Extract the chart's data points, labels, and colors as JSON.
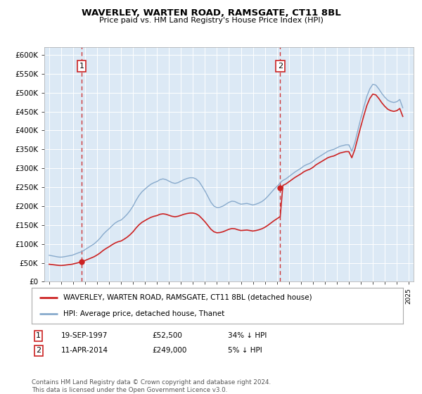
{
  "title": "WAVERLEY, WARTEN ROAD, RAMSGATE, CT11 8BL",
  "subtitle": "Price paid vs. HM Land Registry's House Price Index (HPI)",
  "ylim": [
    0,
    620000
  ],
  "yticks": [
    0,
    50000,
    100000,
    150000,
    200000,
    250000,
    300000,
    350000,
    400000,
    450000,
    500000,
    550000,
    600000
  ],
  "ytick_labels": [
    "£0",
    "£50K",
    "£100K",
    "£150K",
    "£200K",
    "£250K",
    "£300K",
    "£350K",
    "£400K",
    "£450K",
    "£500K",
    "£550K",
    "£600K"
  ],
  "plot_bg_color": "#dce9f5",
  "red_color": "#cc2222",
  "blue_color": "#88aacc",
  "transaction1_date": 1997.72,
  "transaction1_price": 52500,
  "transaction2_date": 2014.28,
  "transaction2_price": 249000,
  "legend_label_red": "WAVERLEY, WARTEN ROAD, RAMSGATE, CT11 8BL (detached house)",
  "legend_label_blue": "HPI: Average price, detached house, Thanet",
  "footer": "Contains HM Land Registry data © Crown copyright and database right 2024.\nThis data is licensed under the Open Government Licence v3.0.",
  "hpi_dates": [
    1995.0,
    1995.083,
    1995.167,
    1995.25,
    1995.333,
    1995.417,
    1995.5,
    1995.583,
    1995.667,
    1995.75,
    1995.833,
    1995.917,
    1996.0,
    1996.083,
    1996.167,
    1996.25,
    1996.333,
    1996.417,
    1996.5,
    1996.583,
    1996.667,
    1996.75,
    1996.833,
    1996.917,
    1997.0,
    1997.083,
    1997.167,
    1997.25,
    1997.333,
    1997.417,
    1997.5,
    1997.583,
    1997.667,
    1997.72,
    1997.75,
    1997.833,
    1997.917,
    1998.0,
    1998.25,
    1998.5,
    1998.75,
    1999.0,
    1999.25,
    1999.5,
    1999.75,
    2000.0,
    2000.25,
    2000.5,
    2000.75,
    2001.0,
    2001.25,
    2001.5,
    2001.75,
    2002.0,
    2002.25,
    2002.5,
    2002.75,
    2003.0,
    2003.25,
    2003.5,
    2003.75,
    2004.0,
    2004.25,
    2004.5,
    2004.75,
    2005.0,
    2005.25,
    2005.5,
    2005.75,
    2006.0,
    2006.25,
    2006.5,
    2006.75,
    2007.0,
    2007.25,
    2007.5,
    2007.75,
    2008.0,
    2008.25,
    2008.5,
    2008.75,
    2009.0,
    2009.25,
    2009.5,
    2009.75,
    2010.0,
    2010.25,
    2010.5,
    2010.75,
    2011.0,
    2011.25,
    2011.5,
    2011.75,
    2012.0,
    2012.25,
    2012.5,
    2012.75,
    2013.0,
    2013.25,
    2013.5,
    2013.75,
    2014.0,
    2014.25,
    2014.28,
    2014.5,
    2014.75,
    2015.0,
    2015.25,
    2015.5,
    2015.75,
    2016.0,
    2016.25,
    2016.5,
    2016.75,
    2017.0,
    2017.25,
    2017.5,
    2017.75,
    2018.0,
    2018.25,
    2018.5,
    2018.75,
    2019.0,
    2019.25,
    2019.5,
    2019.75,
    2020.0,
    2020.25,
    2020.5,
    2020.75,
    2021.0,
    2021.25,
    2021.5,
    2021.75,
    2022.0,
    2022.25,
    2022.5,
    2022.75,
    2023.0,
    2023.25,
    2023.5,
    2023.75,
    2024.0,
    2024.25,
    2024.5
  ],
  "hpi_values": [
    70000,
    69500,
    69000,
    68500,
    68000,
    67500,
    67000,
    66500,
    66000,
    65500,
    65200,
    65000,
    65000,
    65200,
    65500,
    66000,
    66500,
    67000,
    67500,
    68000,
    68500,
    69000,
    69500,
    70000,
    71000,
    72000,
    73000,
    74000,
    75000,
    76000,
    77000,
    78000,
    79000,
    79500,
    80000,
    81500,
    83000,
    85000,
    90000,
    95000,
    100000,
    107000,
    115000,
    125000,
    133000,
    140000,
    148000,
    155000,
    160000,
    163000,
    170000,
    178000,
    188000,
    200000,
    215000,
    228000,
    238000,
    245000,
    252000,
    258000,
    262000,
    265000,
    270000,
    272000,
    270000,
    266000,
    262000,
    260000,
    262000,
    266000,
    270000,
    273000,
    275000,
    275000,
    272000,
    265000,
    253000,
    240000,
    225000,
    210000,
    200000,
    196000,
    197000,
    200000,
    205000,
    210000,
    213000,
    212000,
    208000,
    205000,
    206000,
    207000,
    205000,
    203000,
    205000,
    208000,
    212000,
    218000,
    226000,
    235000,
    244000,
    252000,
    260000,
    262000,
    268000,
    272000,
    278000,
    284000,
    290000,
    295000,
    300000,
    306000,
    310000,
    313000,
    318000,
    325000,
    330000,
    335000,
    340000,
    345000,
    348000,
    350000,
    354000,
    358000,
    360000,
    362000,
    362000,
    345000,
    368000,
    400000,
    432000,
    462000,
    490000,
    510000,
    522000,
    520000,
    510000,
    498000,
    488000,
    480000,
    476000,
    474000,
    476000,
    482000,
    460000
  ],
  "xticks": [
    1995,
    1996,
    1997,
    1998,
    1999,
    2000,
    2001,
    2002,
    2003,
    2004,
    2005,
    2006,
    2007,
    2008,
    2009,
    2010,
    2011,
    2012,
    2013,
    2014,
    2015,
    2016,
    2017,
    2018,
    2019,
    2020,
    2021,
    2022,
    2023,
    2024,
    2025
  ],
  "xlim": [
    1994.6,
    2025.4
  ]
}
